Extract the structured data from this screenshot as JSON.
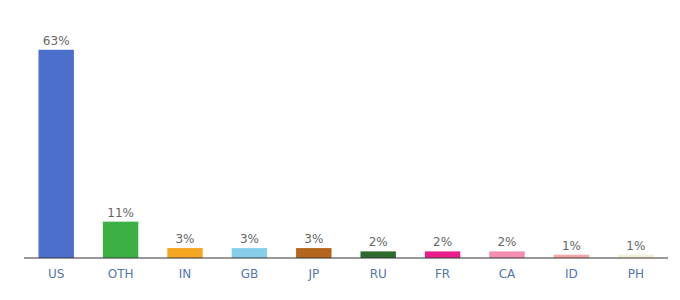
{
  "chart_data": {
    "type": "bar",
    "categories": [
      "US",
      "OTH",
      "IN",
      "GB",
      "JP",
      "RU",
      "FR",
      "CA",
      "ID",
      "PH"
    ],
    "values": [
      63,
      11,
      3,
      3,
      3,
      2,
      2,
      2,
      1,
      1
    ],
    "value_labels": [
      "63%",
      "11%",
      "3%",
      "3%",
      "3%",
      "2%",
      "2%",
      "2%",
      "1%",
      "1%"
    ],
    "colors": [
      "#4d6fcc",
      "#3cb044",
      "#f5a623",
      "#87ceeb",
      "#b5651d",
      "#2d6a2d",
      "#e91e8c",
      "#f48fb1",
      "#f4a9a8",
      "#f5f0d8"
    ],
    "ylim": [
      0,
      72
    ],
    "data_labels": true,
    "tick_labels": "x",
    "grid": false
  }
}
